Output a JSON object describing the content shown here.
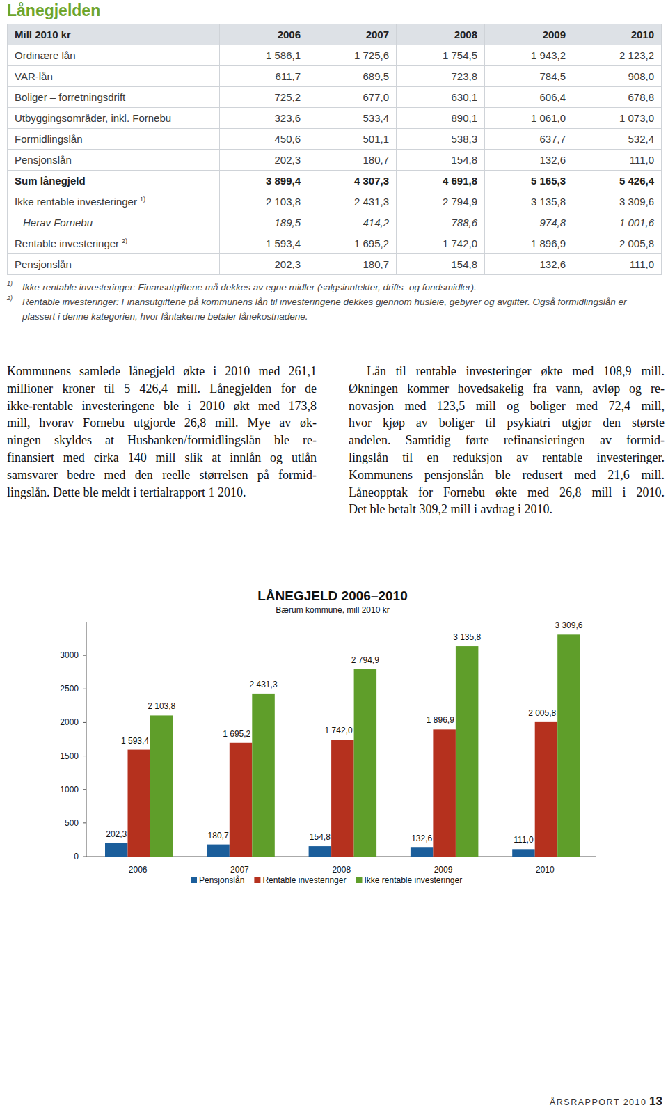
{
  "heading": "Lånegjelden",
  "table": {
    "header": [
      "Mill 2010 kr",
      "2006",
      "2007",
      "2008",
      "2009",
      "2010"
    ],
    "rows": [
      {
        "label": "Ordinære lån",
        "values": [
          "1 586,1",
          "1 725,6",
          "1 754,5",
          "1 943,2",
          "2 123,2"
        ]
      },
      {
        "label": "VAR-lån",
        "values": [
          "611,7",
          "689,5",
          "723,8",
          "784,5",
          "908,0"
        ]
      },
      {
        "label": "Boliger – forretningsdrift",
        "values": [
          "725,2",
          "677,0",
          "630,1",
          "606,4",
          "678,8"
        ]
      },
      {
        "label": "Utbyggingsområder, inkl. Fornebu",
        "values": [
          "323,6",
          "533,4",
          "890,1",
          "1 061,0",
          "1 073,0"
        ]
      },
      {
        "label": "Formidlingslån",
        "values": [
          "450,6",
          "501,1",
          "538,3",
          "637,7",
          "532,4"
        ]
      },
      {
        "label": "Pensjonslån",
        "values": [
          "202,3",
          "180,7",
          "154,8",
          "132,6",
          "111,0"
        ]
      },
      {
        "label": "Sum lånegjeld",
        "values": [
          "3 899,4",
          "4 307,3",
          "4 691,8",
          "5 165,3",
          "5 426,4"
        ]
      },
      {
        "label": "Ikke rentable investeringer",
        "note": "1)",
        "values": [
          "2 103,8",
          "2 431,3",
          "2 794,9",
          "3 135,8",
          "3 309,6"
        ]
      },
      {
        "label": "Herav Fornebu",
        "values": [
          "189,5",
          "414,2",
          "788,6",
          "974,8",
          "1 001,6"
        ]
      },
      {
        "label": "Rentable investeringer",
        "note": "2)",
        "values": [
          "1 593,4",
          "1 695,2",
          "1 742,0",
          "1 896,9",
          "2 005,8"
        ]
      },
      {
        "label": "Pensjonslån",
        "values": [
          "202,3",
          "180,7",
          "154,8",
          "132,6",
          "111,0"
        ]
      }
    ]
  },
  "footnotes": [
    {
      "marker": "1)",
      "text": "Ikke-rentable investeringer: Finansutgiftene må dekkes av egne midler (salgsinntekter, drifts- og fondsmidler)."
    },
    {
      "marker": "2)",
      "text": "Rentable investeringer: Finansutgiftene på kommunens lån til investeringene dekkes gjennom husleie, gebyrer og avgifter. Også formidlingslån er plassert i denne kategorien, hvor låntakerne betaler lånekostnadene."
    }
  ],
  "body": {
    "columns": [
      [
        "Kommunens samlede lånegjeld økte i 2010 med 261,1",
        "millioner kroner til 5 426,4 mill. Lånegjelden for de",
        "ikke-rentable investeringene ble i 2010 økt med 173,8",
        "mill, hvorav Fornebu utgjorde 26,8 mill. Mye av øk-",
        "ningen skyldes at Husbanken/formidlingslån ble re-",
        "finansiert med cirka 140 mill slik at innlån og utlån",
        "samsvarer bedre med den reelle størrelsen på formid-",
        "lingslån. Dette ble meldt i tertialrapport 1 2010."
      ],
      [
        "Lån til rentable investeringer økte med 108,9 mill.",
        "Økningen kommer hovedsakelig fra vann, avløp og re-",
        "novasjon med 123,5 mill og boliger med 72,4 mill,",
        "hvor kjøp av boliger til psykiatri utgjør den største",
        "andelen. Samtidig førte refinansieringen av formid-",
        "lingslån til en reduksjon av rentable investeringer.",
        "Kommunens pensjonslån ble redusert med 21,6 mill.",
        "Låneopptak for Fornebu økte med 26,8 mill i 2010.",
        "Det ble betalt 309,2 mill i avdrag i 2010."
      ]
    ]
  },
  "chart_data": {
    "type": "bar",
    "title": "LÅNEGJELD 2006–2010",
    "subtitle": "Bærum kommune, mill 2010 kr",
    "categories": [
      "2006",
      "2007",
      "2008",
      "2009",
      "2010"
    ],
    "series": [
      {
        "name": "Pensjonslån",
        "color": "#1b5e9b",
        "values": [
          202.3,
          180.7,
          154.8,
          132.6,
          111.0
        ],
        "value_labels": [
          "202,3",
          "180,7",
          "154,8",
          "132,6",
          "111,0"
        ]
      },
      {
        "name": "Rentable investeringer",
        "color": "#b5311e",
        "values": [
          1593.4,
          1695.2,
          1742.0,
          1896.9,
          2005.8
        ],
        "value_labels": [
          "1 593,4",
          "1 695,2",
          "1 742,0",
          "1 896,9",
          "2 005,8"
        ]
      },
      {
        "name": "Ikke rentable investeringer",
        "color": "#5f9e2a",
        "values": [
          2103.8,
          2431.3,
          2794.9,
          3135.8,
          3309.6
        ],
        "value_labels": [
          "2 103,8",
          "2 431,3",
          "2 794,9",
          "3 135,8",
          "3 309,6"
        ]
      }
    ],
    "ylim": [
      0,
      3500
    ],
    "yticks": [
      0,
      500,
      1000,
      1500,
      2000,
      2500,
      3000
    ],
    "grid": false,
    "data_labels": true,
    "legend": "bottom"
  },
  "footer": {
    "label": "ÅRSRAPPORT 2010",
    "page": "13"
  }
}
